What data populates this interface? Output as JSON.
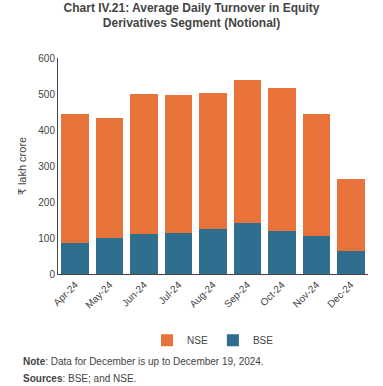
{
  "chart_data": {
    "type": "bar",
    "title": "Chart IV.21: Average Daily Turnover in Equity\nDerivatives Segment (Notional)",
    "categories": [
      "Apr-24",
      "May-24",
      "Jun-24",
      "Jul-24",
      "Aug-24",
      "Sep-24",
      "Oct-24",
      "Nov-24",
      "Dec-24"
    ],
    "series": [
      {
        "name": "BSE",
        "color": "#2e6e8e",
        "values": [
          85,
          100,
          110,
          115,
          125,
          143,
          120,
          106,
          65
        ]
      },
      {
        "name": "NSE",
        "color": "#e8733a",
        "values": [
          360,
          333,
          390,
          383,
          378,
          395,
          398,
          338,
          200
        ]
      }
    ],
    "stacked": true,
    "ylabel": "₹ lakh crore",
    "ylim": [
      0,
      600
    ],
    "yticks": [
      0,
      100,
      200,
      300,
      400,
      500,
      600
    ],
    "grid": false,
    "legend": "bottom",
    "annotations": [
      "Note: Data for December is up to December 19, 2024.",
      "Sources: BSE; and NSE."
    ]
  }
}
